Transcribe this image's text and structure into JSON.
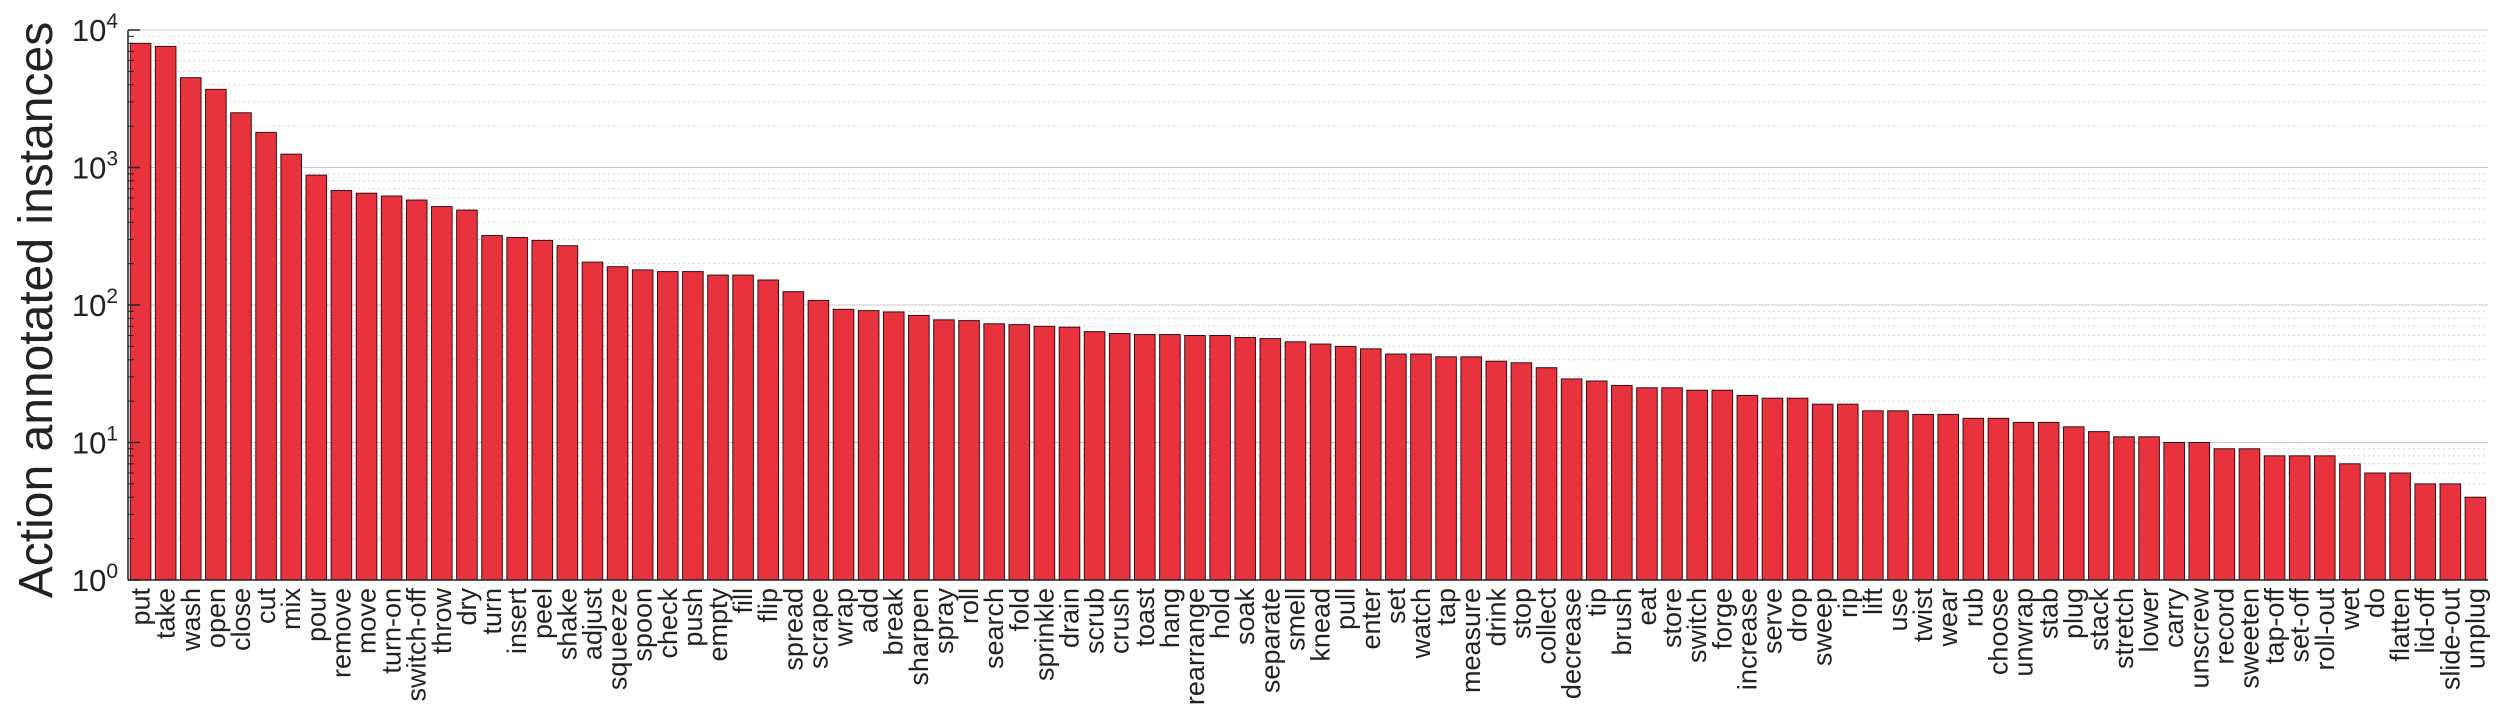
{
  "chart_data": {
    "type": "bar",
    "title": "",
    "xlabel": "",
    "ylabel": "Action annotated instances",
    "yscale": "log",
    "ylim": [
      1,
      10000
    ],
    "grid": true,
    "bar_color": "#e8333f",
    "bar_edge_color": "#3a0f12",
    "y_ticks": [
      {
        "value": 1,
        "base": "10",
        "exp": "0"
      },
      {
        "value": 10,
        "base": "10",
        "exp": "1"
      },
      {
        "value": 100,
        "base": "10",
        "exp": "2"
      },
      {
        "value": 1000,
        "base": "10",
        "exp": "3"
      },
      {
        "value": 10000,
        "base": "10",
        "exp": "4"
      }
    ],
    "categories": [
      "put",
      "take",
      "wash",
      "open",
      "close",
      "cut",
      "mix",
      "pour",
      "remove",
      "move",
      "turn-on",
      "switch-off",
      "throw",
      "dry",
      "turn",
      "insert",
      "peel",
      "shake",
      "adjust",
      "squeeze",
      "spoon",
      "check",
      "push",
      "empty",
      "fill",
      "flip",
      "spread",
      "scrape",
      "wrap",
      "add",
      "break",
      "sharpen",
      "spray",
      "roll",
      "search",
      "fold",
      "sprinkle",
      "drain",
      "scrub",
      "crush",
      "toast",
      "hang",
      "rearrange",
      "hold",
      "soak",
      "separate",
      "smell",
      "knead",
      "pull",
      "enter",
      "set",
      "watch",
      "tap",
      "measure",
      "drink",
      "stop",
      "collect",
      "decrease",
      "tip",
      "brush",
      "eat",
      "store",
      "switch",
      "forge",
      "increase",
      "serve",
      "drop",
      "sweep",
      "rip",
      "lift",
      "use",
      "twist",
      "wear",
      "rub",
      "choose",
      "unwrap",
      "stab",
      "plug",
      "stack",
      "stretch",
      "lower",
      "carry",
      "unscrew",
      "record",
      "sweeten",
      "tap-off",
      "set-off",
      "roll-out",
      "wet",
      "do",
      "flatten",
      "lid-off",
      "slide-out",
      "unplug"
    ],
    "values": [
      8000,
      7600,
      4500,
      3700,
      2500,
      1800,
      1250,
      880,
      680,
      650,
      620,
      580,
      520,
      490,
      320,
      310,
      295,
      270,
      205,
      190,
      180,
      175,
      175,
      165,
      165,
      152,
      125,
      108,
      93,
      91,
      89,
      84,
      78,
      77,
      73,
      72,
      70,
      69,
      64,
      62,
      61,
      61,
      60,
      60,
      58,
      57,
      54,
      52,
      50,
      48,
      44,
      44,
      42,
      42,
      39,
      38,
      35,
      29,
      28,
      26,
      25,
      25,
      24,
      24,
      22,
      21,
      21,
      19,
      19,
      17,
      17,
      16,
      16,
      15,
      15,
      14,
      14,
      13,
      12,
      11,
      11,
      10,
      10,
      9,
      9,
      8,
      8,
      8,
      7,
      6,
      6,
      5,
      5,
      4
    ]
  }
}
